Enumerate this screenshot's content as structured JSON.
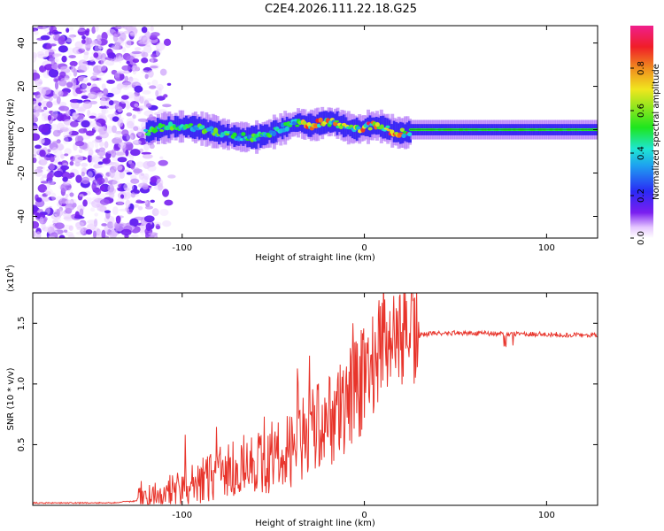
{
  "title": "C2E4.2026.111.22.18.G25",
  "chart_data": [
    {
      "type": "heatmap",
      "name": "spectrogram",
      "xlabel": "Height of straight line (km)",
      "ylabel": "Frequency (Hz)",
      "xlim": [
        -182,
        128
      ],
      "ylim": [
        -50,
        48
      ],
      "xticks": [
        -100,
        0,
        100
      ],
      "yticks": [
        40,
        20,
        0,
        -20,
        -40
      ],
      "colorbar": {
        "label": "Normalized spectral amplitude",
        "range": [
          0.0,
          1.0
        ],
        "ticks": [
          "0.0",
          "0.2",
          "0.4",
          "0.6",
          "0.8"
        ],
        "tick_values": [
          0.0,
          0.2,
          0.4,
          0.6,
          0.8
        ]
      },
      "features": {
        "noise_region_x": [
          -182,
          -105
        ],
        "signal_start_x": -120,
        "signal_center_freq": 0,
        "peak_region_x": [
          -35,
          25
        ]
      }
    },
    {
      "type": "line",
      "name": "snr",
      "xlabel": "Height of straight line (km)",
      "ylabel": "SNR (10 * v/v)",
      "y_multiplier": "(x10",
      "y_multiplier_exp": "4",
      "y_multiplier_close": ")",
      "xlim": [
        -182,
        128
      ],
      "ylim": [
        0,
        1.75
      ],
      "xticks": [
        -100,
        0,
        100
      ],
      "yticks": [
        "0.5",
        "1.0",
        "1.5"
      ],
      "ytick_values": [
        0.5,
        1.0,
        1.5
      ],
      "color": "#e8342b",
      "series": [
        {
          "name": "SNR",
          "x": [
            -182,
            -140,
            -120,
            -110,
            -100,
            -90,
            -80,
            -70,
            -60,
            -50,
            -40,
            -30,
            -20,
            -10,
            0,
            5,
            10,
            15,
            20,
            30,
            40,
            60,
            80,
            100,
            128
          ],
          "y": [
            0.02,
            0.02,
            0.04,
            0.08,
            0.12,
            0.18,
            0.25,
            0.3,
            0.33,
            0.38,
            0.45,
            0.55,
            0.65,
            0.8,
            1.0,
            1.15,
            1.2,
            1.3,
            1.35,
            1.4,
            1.42,
            1.42,
            1.41,
            1.41,
            1.4
          ]
        }
      ]
    }
  ]
}
